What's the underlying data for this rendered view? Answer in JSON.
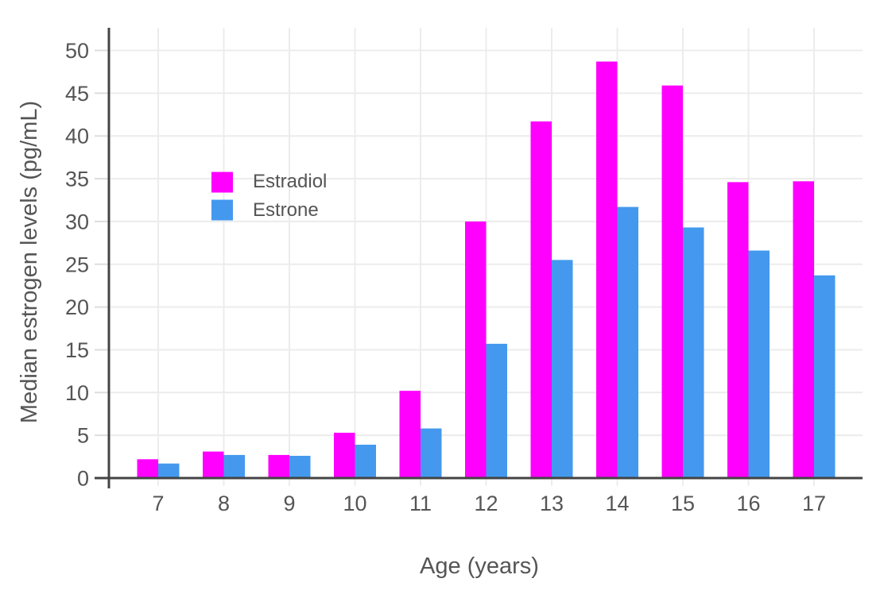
{
  "chart_data": {
    "type": "bar",
    "title": "",
    "xlabel": "Age (years)",
    "ylabel": "Median estrogen levels (pg/mL)",
    "categories": [
      "7",
      "8",
      "9",
      "10",
      "11",
      "12",
      "13",
      "14",
      "15",
      "16",
      "17"
    ],
    "series": [
      {
        "name": "Estradiol",
        "color": "#FF00FF",
        "values": [
          2.2,
          3.1,
          2.7,
          5.3,
          10.2,
          30.0,
          41.7,
          48.7,
          45.9,
          34.6,
          34.7
        ]
      },
      {
        "name": "Estrone",
        "color": "#4499EE",
        "values": [
          1.7,
          2.7,
          2.6,
          3.9,
          5.8,
          15.7,
          25.5,
          31.7,
          29.3,
          26.6,
          23.7
        ]
      }
    ],
    "ylim": [
      0,
      52.3
    ],
    "yticks": [
      0,
      5,
      10,
      15,
      20,
      25,
      30,
      35,
      40,
      45,
      50
    ],
    "grid": true,
    "legend_position": "inside-top-left",
    "colors": {
      "grid": "#ECECEC",
      "tick": "#DDDDDD",
      "axis": "#444444",
      "text": "#555555",
      "background": "#FFFFFF"
    }
  }
}
